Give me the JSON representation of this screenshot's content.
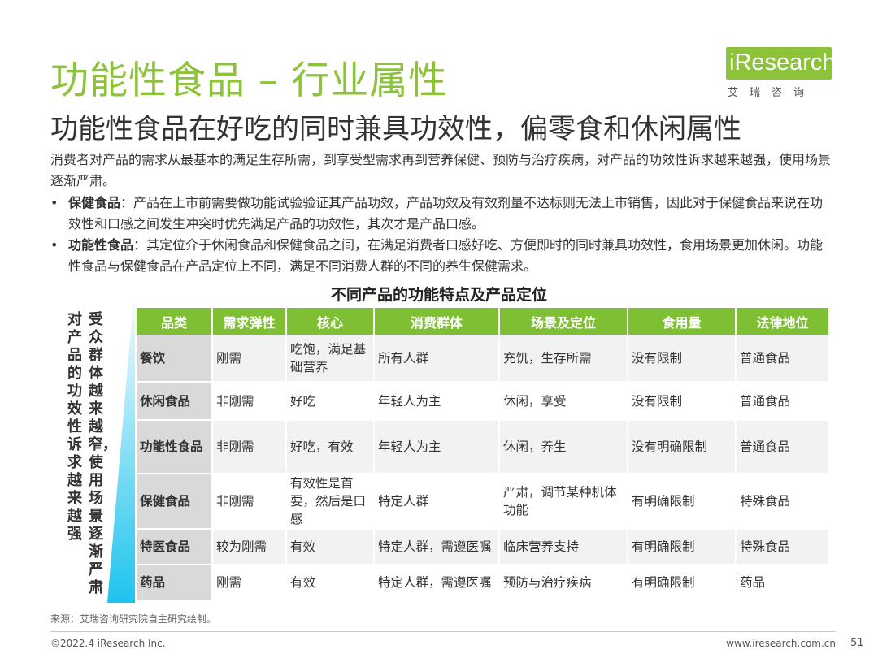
{
  "header": {
    "title": "功能性食品 – 行业属性",
    "subtitle": "功能性食品在好吃的同时兼具功效性，偏零食和休闲属性"
  },
  "logo": {
    "brand": "iResearch",
    "sub": "艾瑞咨询"
  },
  "intro": "消费者对产品的需求从最基本的满足生存所需，到享受型需求再到营养保健、预防与治疗疾病，对产品的功效性诉求越来越强，使用场景逐渐严肃。",
  "bullets": [
    {
      "term": "保健食品",
      "text": "：产品在上市前需要做功能试验验证其产品功效，产品功效及有效剂量不达标则无法上市销售，因此对于保健食品来说在功效性和口感之间发生冲突时优先满足产品的功效性，其次才是产品口感。"
    },
    {
      "term": "功能性食品",
      "text": "：其定位介于休闲食品和保健食品之间，在满足消费者口感好吃、方便即时的同时兼具功效性，食用场景更加休闲。功能性食品与保健食品在产品定位上不同，满足不同消费人群的不同的养生保健需求。"
    }
  ],
  "table": {
    "title": "不同产品的功能特点及产品定位",
    "left_label_outer": "对产品的功效性诉求越来越强",
    "left_label_inner": "受众群体越来越窄，使用场景逐渐严肃",
    "headers": [
      "品类",
      "需求弹性",
      "核心",
      "消费群体",
      "场景及定位",
      "食用量",
      "法律地位"
    ],
    "rows": [
      [
        "餐饮",
        "刚需",
        "吃饱，满足基础营养",
        "所有人群",
        "充饥，生存所需",
        "没有限制",
        "普通食品"
      ],
      [
        "休闲食品",
        "非刚需",
        "好吃",
        "年轻人为主",
        "休闲，享受",
        "没有限制",
        "普通食品"
      ],
      [
        "功能性食品",
        "非刚需",
        "好吃，有效",
        "年轻人为主",
        "休闲，养生",
        "没有明确限制",
        "普通食品"
      ],
      [
        "保健食品",
        "非刚需",
        "有效性是首要，然后是口感",
        "特定人群",
        "严肃，调节某种机体功能",
        "有明确限制",
        "特殊食品"
      ],
      [
        "特医食品",
        "较为刚需",
        "有效",
        "特定人群，需遵医嘱",
        "临床营养支持",
        "有明确限制",
        "特殊食品"
      ],
      [
        "药品",
        "刚需",
        "有效",
        "特定人群，需遵医嘱",
        "预防与治疗疾病",
        "有明确限制",
        "药品"
      ]
    ]
  },
  "footer": {
    "source": "来源：艾瑞咨询研究院自主研究绘制。",
    "copyright": "©2022.4 iResearch Inc.",
    "website": "www.iresearch.com.cn",
    "page": "51"
  },
  "colors": {
    "accent_green": "#8dc33a",
    "header_green": "#7fbf33",
    "arrow_cyan": "#1ec3ee"
  }
}
